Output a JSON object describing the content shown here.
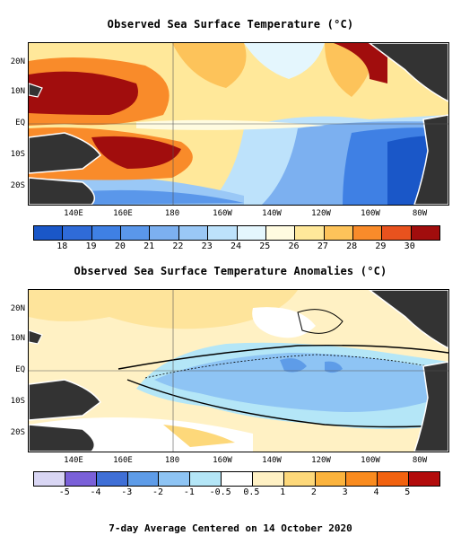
{
  "sst_title": "Observed Sea Surface Temperature (°C)",
  "anom_title": "Observed Sea Surface Temperature Anomalies (°C)",
  "footer": "7-day Average Centered on 14 October 2020",
  "lat_labels": [
    "20N",
    "10N",
    "EQ",
    "10S",
    "20S"
  ],
  "lon_labels": [
    "140E",
    "160E",
    "180",
    "160W",
    "140W",
    "120W",
    "100W",
    "80W"
  ],
  "sst_colorbar": {
    "labels": [
      "18",
      "19",
      "20",
      "21",
      "22",
      "23",
      "24",
      "25",
      "26",
      "27",
      "28",
      "29",
      "30"
    ],
    "colors": [
      "#1a57c8",
      "#2f6bd8",
      "#3f80e4",
      "#5a97ea",
      "#7cb0f0",
      "#9ac8f6",
      "#bde2fb",
      "#e4f6fd",
      "#fffbe0",
      "#ffe89a",
      "#fdc35a",
      "#f98b2a",
      "#e8521e",
      "#a10d0d"
    ]
  },
  "anom_colorbar": {
    "labels": [
      "-5",
      "-4",
      "-3",
      "-2",
      "-1",
      "-0.5",
      "0.5",
      "1",
      "2",
      "3",
      "4",
      "5"
    ],
    "colors": [
      "#d9d6f4",
      "#7a60d8",
      "#3f6fd6",
      "#5e9ce8",
      "#8ec4f4",
      "#b4e6f7",
      "#ffffff",
      "#fff1c4",
      "#fdd87a",
      "#fbb33d",
      "#f98b1f",
      "#f2620f",
      "#b20c0c"
    ]
  },
  "colors": {
    "land": "#333333",
    "coast": "#ffffff",
    "grid": "#555555"
  }
}
